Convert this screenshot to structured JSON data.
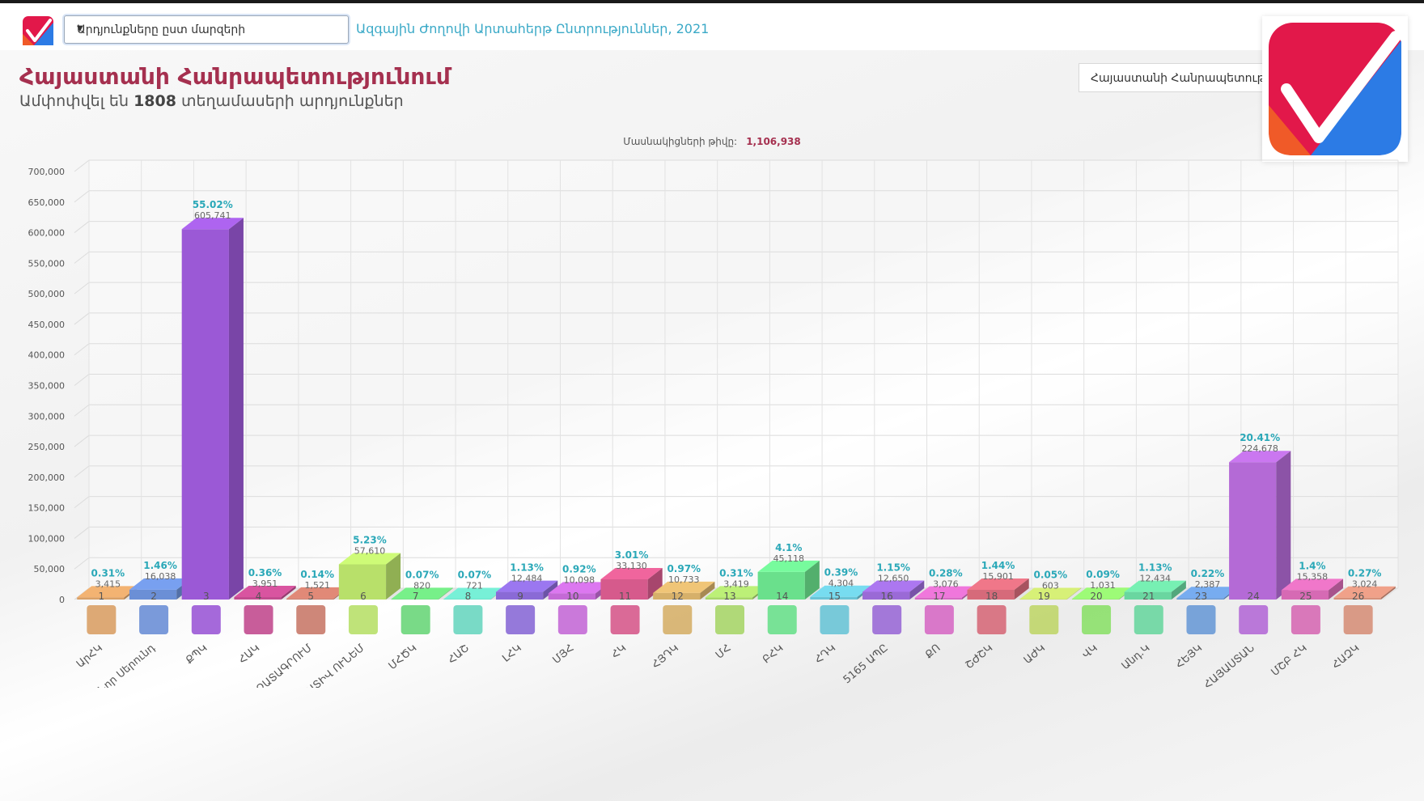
{
  "header": {
    "select_value": "Արդյունքները ըստ մարզերի",
    "title": "Ազգային Ժողովի Արտահերթ Ընտրություններ, 2021"
  },
  "main": {
    "title": "Հայաստանի Հանրապետությունում",
    "subtitle_prefix": "Ամփոփվել են",
    "subtitle_count": "1808",
    "subtitle_suffix": "տեղամասերի արդյունքներ",
    "region_button": "Հայաստանի Հանրապետությու"
  },
  "chart_data": {
    "type": "bar",
    "title_label": "Մասնակիցների թիվը:",
    "title_value": "1,106,938",
    "ylim": [
      0,
      700000
    ],
    "yticks": [
      0,
      50000,
      100000,
      150000,
      200000,
      250000,
      300000,
      350000,
      400000,
      450000,
      500000,
      550000,
      600000,
      650000,
      700000
    ],
    "ytick_labels": [
      "0",
      "50,000",
      "100,000",
      "150,000",
      "200,000",
      "250,000",
      "300,000",
      "350,000",
      "400,000",
      "450,000",
      "500,000",
      "550,000",
      "600,000",
      "650,000",
      "700,000"
    ],
    "bars": [
      {
        "num": "1",
        "name": "ԱրՀԿ",
        "value": 3415,
        "value_label": "3,415",
        "pct": "0.31%",
        "color": "#d9a066"
      },
      {
        "num": "2",
        "name": "Նոր Սերունդ",
        "value": 16038,
        "value_label": "16,038",
        "pct": "1.46%",
        "color": "#6b8fd6"
      },
      {
        "num": "3",
        "name": "ՔՊԿ",
        "value": 605741,
        "value_label": "605,741",
        "pct": "55.02%",
        "color": "#9b59d6"
      },
      {
        "num": "4",
        "name": "ՀԱԿ",
        "value": 3951,
        "value_label": "3,951",
        "pct": "0.36%",
        "color": "#c24b8f"
      },
      {
        "num": "5",
        "name": "ԱԶԱՏԱԳՐՈՒՄ",
        "value": 1521,
        "value_label": "1,521",
        "pct": "0.14%",
        "color": "#c97a6a"
      },
      {
        "num": "6",
        "name": "ՊԱՏԻՎ ՈՒՆԵՄ",
        "value": 57610,
        "value_label": "57,610",
        "pct": "5.23%",
        "color": "#b8e06a"
      },
      {
        "num": "7",
        "name": "ՄՀԾԿ",
        "value": 820,
        "value_label": "820",
        "pct": "0.07%",
        "color": "#6ad67a"
      },
      {
        "num": "8",
        "name": "ՀԱՇ",
        "value": 721,
        "value_label": "721",
        "pct": "0.07%",
        "color": "#6ad6c0"
      },
      {
        "num": "9",
        "name": "ԼՀԿ",
        "value": 12484,
        "value_label": "12,484",
        "pct": "1.13%",
        "color": "#8a6ad6"
      },
      {
        "num": "10",
        "name": "ՄՅՀ",
        "value": 10098,
        "value_label": "10,098",
        "pct": "0.92%",
        "color": "#c46ad6"
      },
      {
        "num": "11",
        "name": "ՀԿ",
        "value": 33130,
        "value_label": "33,130",
        "pct": "3.01%",
        "color": "#d65a8c"
      },
      {
        "num": "12",
        "name": "ՀՅԴԿ",
        "value": 10733,
        "value_label": "10,733",
        "pct": "0.97%",
        "color": "#d6b06a"
      },
      {
        "num": "13",
        "name": "ՄՀ",
        "value": 3419,
        "value_label": "3,419",
        "pct": "0.31%",
        "color": "#a8d66a"
      },
      {
        "num": "14",
        "name": "ԲՀԿ",
        "value": 45118,
        "value_label": "45,118",
        "pct": "4.1%",
        "color": "#6ae08c"
      },
      {
        "num": "15",
        "name": "ՀԴԿ",
        "value": 4304,
        "value_label": "4,304",
        "pct": "0.39%",
        "color": "#6ac4d6"
      },
      {
        "num": "16",
        "name": "5165 ԱՊԸ",
        "value": 12650,
        "value_label": "12,650",
        "pct": "1.15%",
        "color": "#9a6ad6"
      },
      {
        "num": "17",
        "name": "ՔՈ",
        "value": 3076,
        "value_label": "3,076",
        "pct": "0.28%",
        "color": "#d66ac4"
      },
      {
        "num": "18",
        "name": "ՇԺՇԿ",
        "value": 15901,
        "value_label": "15,901",
        "pct": "1.44%",
        "color": "#d66a7a"
      },
      {
        "num": "19",
        "name": "ԱԺԿ",
        "value": 603,
        "value_label": "603",
        "pct": "0.05%",
        "color": "#c0d66a"
      },
      {
        "num": "20",
        "name": "ՎԿ",
        "value": 1031,
        "value_label": "1,031",
        "pct": "0.09%",
        "color": "#8ce06a"
      },
      {
        "num": "21",
        "name": "Անդ.Կ",
        "value": 12434,
        "value_label": "12,434",
        "pct": "1.13%",
        "color": "#6ad6a0"
      },
      {
        "num": "23",
        "name": "ՀԵՅԿ",
        "value": 2387,
        "value_label": "2,387",
        "pct": "0.22%",
        "color": "#6a9ad6"
      },
      {
        "num": "24",
        "name": "ՀԱՅԱՍՏԱՆ",
        "value": 224678,
        "value_label": "224,678",
        "pct": "20.41%",
        "color": "#b46ad6"
      },
      {
        "num": "25",
        "name": "ՄՇԲ ՀԿ",
        "value": 15358,
        "value_label": "15,358",
        "pct": "1.4%",
        "color": "#d66ab4"
      },
      {
        "num": "26",
        "name": "ՀԱԶԿ",
        "value": 3024,
        "value_label": "3,024",
        "pct": "0.27%",
        "color": "#d6907a"
      }
    ]
  }
}
